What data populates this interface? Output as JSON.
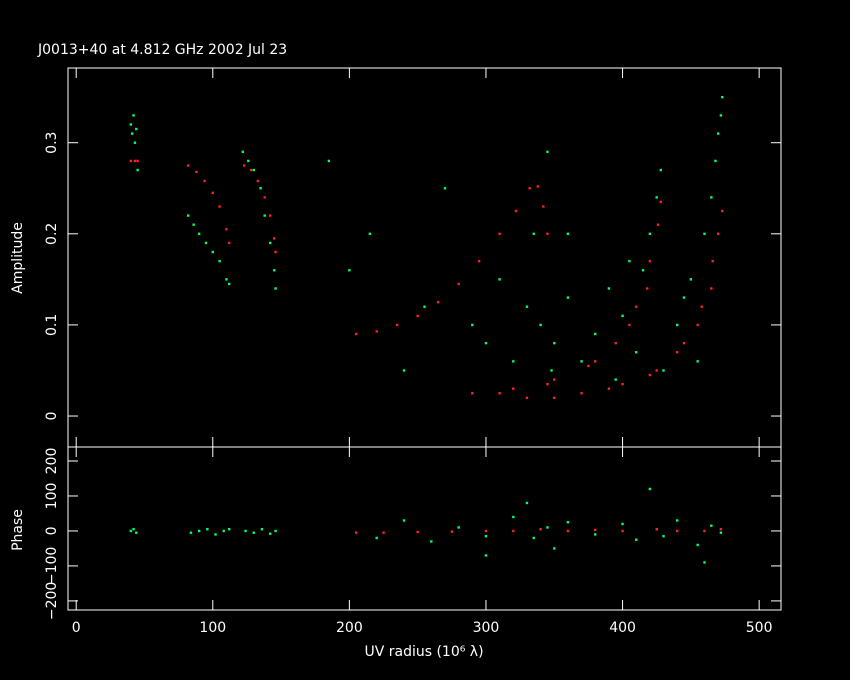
{
  "chart_data": [
    {
      "type": "scatter",
      "title": "J0013+40 at 4.812 GHz 2002 Jul 23",
      "ylabel": "Amplitude",
      "xlim": [
        -6,
        516
      ],
      "xticks": [
        0,
        100,
        200,
        300,
        400,
        500
      ],
      "ylim": [
        -0.034,
        0.382
      ],
      "yticks": [
        0,
        0.1,
        0.2,
        0.3
      ],
      "series": [
        {
          "color": "#00ff66",
          "x": [
            40,
            41,
            42,
            43,
            44,
            45,
            82,
            86,
            90,
            95,
            100,
            105,
            110,
            112,
            122,
            126,
            130,
            135,
            138,
            142,
            145,
            146,
            185,
            200,
            215,
            240,
            255,
            270,
            290,
            300,
            310,
            320,
            330,
            335,
            340,
            345,
            348,
            350,
            360,
            370,
            380,
            390,
            400,
            410,
            415,
            420,
            425,
            428,
            430,
            440,
            450,
            460,
            465,
            468,
            470,
            472,
            473,
            455,
            445,
            360,
            395,
            405
          ],
          "values": [
            0.32,
            0.31,
            0.33,
            0.3,
            0.315,
            0.27,
            0.22,
            0.21,
            0.2,
            0.19,
            0.18,
            0.17,
            0.15,
            0.145,
            0.29,
            0.28,
            0.27,
            0.25,
            0.22,
            0.19,
            0.16,
            0.14,
            0.28,
            0.16,
            0.2,
            0.05,
            0.12,
            0.25,
            0.1,
            0.08,
            0.15,
            0.06,
            0.12,
            0.2,
            0.1,
            0.29,
            0.05,
            0.08,
            0.13,
            0.06,
            0.09,
            0.14,
            0.11,
            0.07,
            0.16,
            0.2,
            0.24,
            0.27,
            0.05,
            0.1,
            0.15,
            0.2,
            0.24,
            0.28,
            0.31,
            0.33,
            0.35,
            0.06,
            0.13,
            0.2,
            0.04,
            0.17
          ]
        },
        {
          "color": "#ff2020",
          "x": [
            40,
            43,
            45,
            82,
            88,
            94,
            100,
            105,
            110,
            112,
            123,
            128,
            133,
            138,
            142,
            145,
            146,
            205,
            220,
            235,
            250,
            265,
            280,
            295,
            310,
            322,
            332,
            338,
            342,
            345,
            290,
            320,
            350,
            375,
            395,
            410,
            420,
            426,
            428,
            330,
            370,
            400,
            425,
            445,
            458,
            466,
            470,
            473,
            310,
            345,
            380,
            405,
            418,
            350,
            390,
            420,
            440,
            455,
            465
          ],
          "values": [
            0.28,
            0.28,
            0.28,
            0.275,
            0.268,
            0.258,
            0.245,
            0.23,
            0.205,
            0.19,
            0.275,
            0.27,
            0.258,
            0.24,
            0.22,
            0.195,
            0.18,
            0.09,
            0.093,
            0.1,
            0.11,
            0.125,
            0.145,
            0.17,
            0.2,
            0.225,
            0.25,
            0.252,
            0.23,
            0.2,
            0.025,
            0.03,
            0.04,
            0.055,
            0.08,
            0.12,
            0.17,
            0.21,
            0.235,
            0.02,
            0.025,
            0.035,
            0.05,
            0.08,
            0.12,
            0.17,
            0.2,
            0.225,
            0.025,
            0.035,
            0.06,
            0.1,
            0.14,
            0.02,
            0.03,
            0.045,
            0.07,
            0.1,
            0.14
          ]
        }
      ]
    },
    {
      "type": "scatter",
      "ylabel": "Phase",
      "xlabel": "UV radius  (10⁶ λ)",
      "xlim": [
        -6,
        516
      ],
      "xticks": [
        0,
        100,
        200,
        300,
        400,
        500
      ],
      "ylim": [
        -226,
        240
      ],
      "yticks": [
        {
          "value": -200,
          "label": "−200"
        },
        {
          "value": -100,
          "label": "−100"
        },
        0,
        100,
        200
      ],
      "series": [
        {
          "color": "#00ff66",
          "x": [
            40,
            42,
            44,
            84,
            90,
            96,
            102,
            108,
            112,
            124,
            130,
            136,
            142,
            146,
            220,
            240,
            260,
            280,
            300,
            320,
            335,
            345,
            350,
            360,
            380,
            400,
            410,
            425,
            430,
            440,
            455,
            465,
            472,
            330,
            420,
            300,
            460
          ],
          "values": [
            0,
            5,
            -5,
            -5,
            0,
            5,
            -10,
            0,
            5,
            0,
            -5,
            5,
            -8,
            0,
            -20,
            30,
            -30,
            10,
            -15,
            40,
            -20,
            10,
            -50,
            25,
            -10,
            20,
            -25,
            5,
            -15,
            30,
            -40,
            15,
            -5,
            80,
            120,
            -70,
            -90
          ]
        },
        {
          "color": "#ff2020",
          "x": [
            205,
            225,
            250,
            275,
            300,
            320,
            340,
            360,
            380,
            400,
            425,
            440,
            460,
            472
          ],
          "values": [
            -5,
            -5,
            -3,
            -2,
            0,
            0,
            5,
            0,
            3,
            0,
            5,
            0,
            0,
            5
          ]
        }
      ]
    }
  ]
}
